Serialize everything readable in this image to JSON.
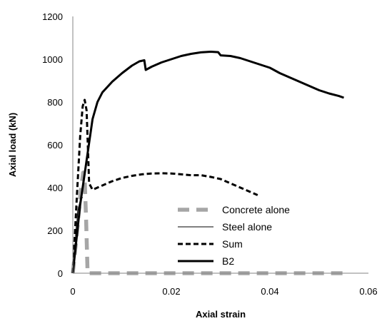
{
  "chart_data": {
    "type": "line",
    "xlabel": "Axial strain",
    "ylabel": "Axial load (kN)",
    "xlim": [
      0,
      0.06
    ],
    "ylim": [
      0,
      1200
    ],
    "xticks": [
      0,
      0.02,
      0.04,
      0.06
    ],
    "yticks": [
      0,
      200,
      400,
      600,
      800,
      1000,
      1200
    ],
    "grid": false,
    "legend_position": "bottom-center",
    "series": [
      {
        "name": "Concrete alone",
        "style": "long-dash-grey",
        "color": "#a6a6a6",
        "points": [
          [
            0,
            0
          ],
          [
            0.0008,
            180
          ],
          [
            0.0016,
            380
          ],
          [
            0.0021,
            470
          ],
          [
            0.0024,
            440
          ],
          [
            0.0027,
            250
          ],
          [
            0.0029,
            80
          ],
          [
            0.003,
            0
          ],
          [
            0.055,
            0
          ]
        ]
      },
      {
        "name": "Steel alone",
        "style": "thin-solid",
        "color": "#000000",
        "points": [
          [
            0,
            0
          ],
          [
            0.0005,
            150
          ],
          [
            0.001,
            290
          ],
          [
            0.0015,
            340
          ],
          [
            0.002,
            355
          ]
        ]
      },
      {
        "name": "Sum",
        "style": "short-dash",
        "color": "#000000",
        "points": [
          [
            0,
            0
          ],
          [
            0.0008,
            350
          ],
          [
            0.0015,
            640
          ],
          [
            0.002,
            780
          ],
          [
            0.0024,
            810
          ],
          [
            0.0028,
            760
          ],
          [
            0.0031,
            560
          ],
          [
            0.0033,
            420
          ],
          [
            0.004,
            390
          ],
          [
            0.006,
            410
          ],
          [
            0.008,
            430
          ],
          [
            0.01,
            445
          ],
          [
            0.012,
            455
          ],
          [
            0.014,
            462
          ],
          [
            0.016,
            466
          ],
          [
            0.018,
            467
          ],
          [
            0.02,
            466
          ],
          [
            0.022,
            462
          ],
          [
            0.024,
            458
          ],
          [
            0.026,
            458
          ],
          [
            0.028,
            450
          ],
          [
            0.03,
            440
          ],
          [
            0.032,
            420
          ],
          [
            0.034,
            400
          ],
          [
            0.036,
            380
          ],
          [
            0.0375,
            365
          ]
        ]
      },
      {
        "name": "B2",
        "style": "thick-solid",
        "color": "#000000",
        "points": [
          [
            0,
            0
          ],
          [
            0.0015,
            320
          ],
          [
            0.003,
            560
          ],
          [
            0.004,
            720
          ],
          [
            0.005,
            800
          ],
          [
            0.006,
            845
          ],
          [
            0.008,
            895
          ],
          [
            0.01,
            935
          ],
          [
            0.012,
            970
          ],
          [
            0.0135,
            990
          ],
          [
            0.0145,
            995
          ],
          [
            0.0148,
            950
          ],
          [
            0.016,
            965
          ],
          [
            0.018,
            985
          ],
          [
            0.02,
            1000
          ],
          [
            0.022,
            1015
          ],
          [
            0.024,
            1025
          ],
          [
            0.026,
            1032
          ],
          [
            0.028,
            1035
          ],
          [
            0.0295,
            1033
          ],
          [
            0.03,
            1018
          ],
          [
            0.032,
            1015
          ],
          [
            0.034,
            1005
          ],
          [
            0.036,
            990
          ],
          [
            0.038,
            975
          ],
          [
            0.04,
            960
          ],
          [
            0.042,
            935
          ],
          [
            0.045,
            905
          ],
          [
            0.048,
            875
          ],
          [
            0.05,
            855
          ],
          [
            0.052,
            840
          ],
          [
            0.054,
            828
          ],
          [
            0.055,
            820
          ]
        ]
      }
    ]
  }
}
